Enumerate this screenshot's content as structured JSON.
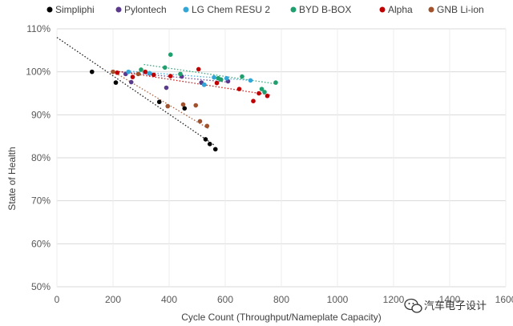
{
  "chart_data": {
    "type": "scatter",
    "title": "",
    "xlabel": "Cycle Count (Throughput/Nameplate Capacity)",
    "ylabel": "State of Health",
    "xlim": [
      0,
      1600
    ],
    "ylim": [
      50,
      110
    ],
    "x_ticks": [
      "0",
      "200",
      "400",
      "600",
      "800",
      "1000",
      "1200",
      "1400",
      "1600"
    ],
    "y_ticks": [
      "50%",
      "60%",
      "70%",
      "80%",
      "90%",
      "100%",
      "110%"
    ],
    "grid": true,
    "legend_position": "top",
    "series": [
      {
        "name": "Simpliphi",
        "color": "#000000",
        "points": [
          [
            125,
            100
          ],
          [
            210,
            97.5
          ],
          [
            365,
            93
          ],
          [
            455,
            91.5
          ],
          [
            530,
            84.3
          ],
          [
            545,
            83.2
          ],
          [
            565,
            82
          ]
        ],
        "trend": [
          [
            0,
            108
          ],
          [
            560,
            83
          ]
        ]
      },
      {
        "name": "Pylontech",
        "color": "#5b3a8e",
        "points": [
          [
            245,
            99.5
          ],
          [
            265,
            97.6
          ],
          [
            330,
            99.6
          ],
          [
            390,
            96.3
          ],
          [
            445,
            98.9
          ],
          [
            515,
            97.5
          ],
          [
            525,
            97
          ],
          [
            610,
            97.8
          ]
        ],
        "trend": [
          [
            230,
            100
          ],
          [
            610,
            97.6
          ]
        ]
      },
      {
        "name": "LG Chem RESU 2",
        "color": "#33a6d8",
        "points": [
          [
            255,
            100
          ],
          [
            330,
            99.7
          ],
          [
            525,
            97
          ],
          [
            560,
            98.7
          ],
          [
            605,
            98.5
          ],
          [
            690,
            98
          ]
        ],
        "trend": [
          [
            250,
            100.2
          ],
          [
            690,
            98
          ]
        ]
      },
      {
        "name": "BYD B-BOX",
        "color": "#1f9e6e",
        "points": [
          [
            300,
            100.5
          ],
          [
            385,
            101
          ],
          [
            405,
            104
          ],
          [
            440,
            99.5
          ],
          [
            575,
            98.5
          ],
          [
            585,
            98.2
          ],
          [
            660,
            98.9
          ],
          [
            730,
            96
          ],
          [
            740,
            95.3
          ],
          [
            780,
            97.5
          ]
        ],
        "trend": [
          [
            310,
            101.7
          ],
          [
            780,
            97.2
          ]
        ]
      },
      {
        "name": "Alpha",
        "color": "#c00000",
        "points": [
          [
            215,
            99.8
          ],
          [
            270,
            98.8
          ],
          [
            315,
            100
          ],
          [
            345,
            99.3
          ],
          [
            405,
            99
          ],
          [
            505,
            100.6
          ],
          [
            570,
            97.4
          ],
          [
            650,
            96
          ],
          [
            700,
            93.2
          ],
          [
            720,
            95
          ],
          [
            750,
            94.4
          ]
        ],
        "trend": [
          [
            200,
            100.3
          ],
          [
            760,
            94.6
          ]
        ]
      },
      {
        "name": "GNB Li-ion",
        "color": "#a0522d",
        "points": [
          [
            200,
            100
          ],
          [
            290,
            99.5
          ],
          [
            395,
            92
          ],
          [
            450,
            92.4
          ],
          [
            495,
            92.2
          ],
          [
            510,
            88.5
          ],
          [
            535,
            87.4
          ]
        ],
        "trend": [
          [
            200,
            100.1
          ],
          [
            540,
            86.8
          ]
        ]
      }
    ]
  },
  "watermark": {
    "text": "汽车电子设计",
    "icon": "wechat-icon"
  }
}
